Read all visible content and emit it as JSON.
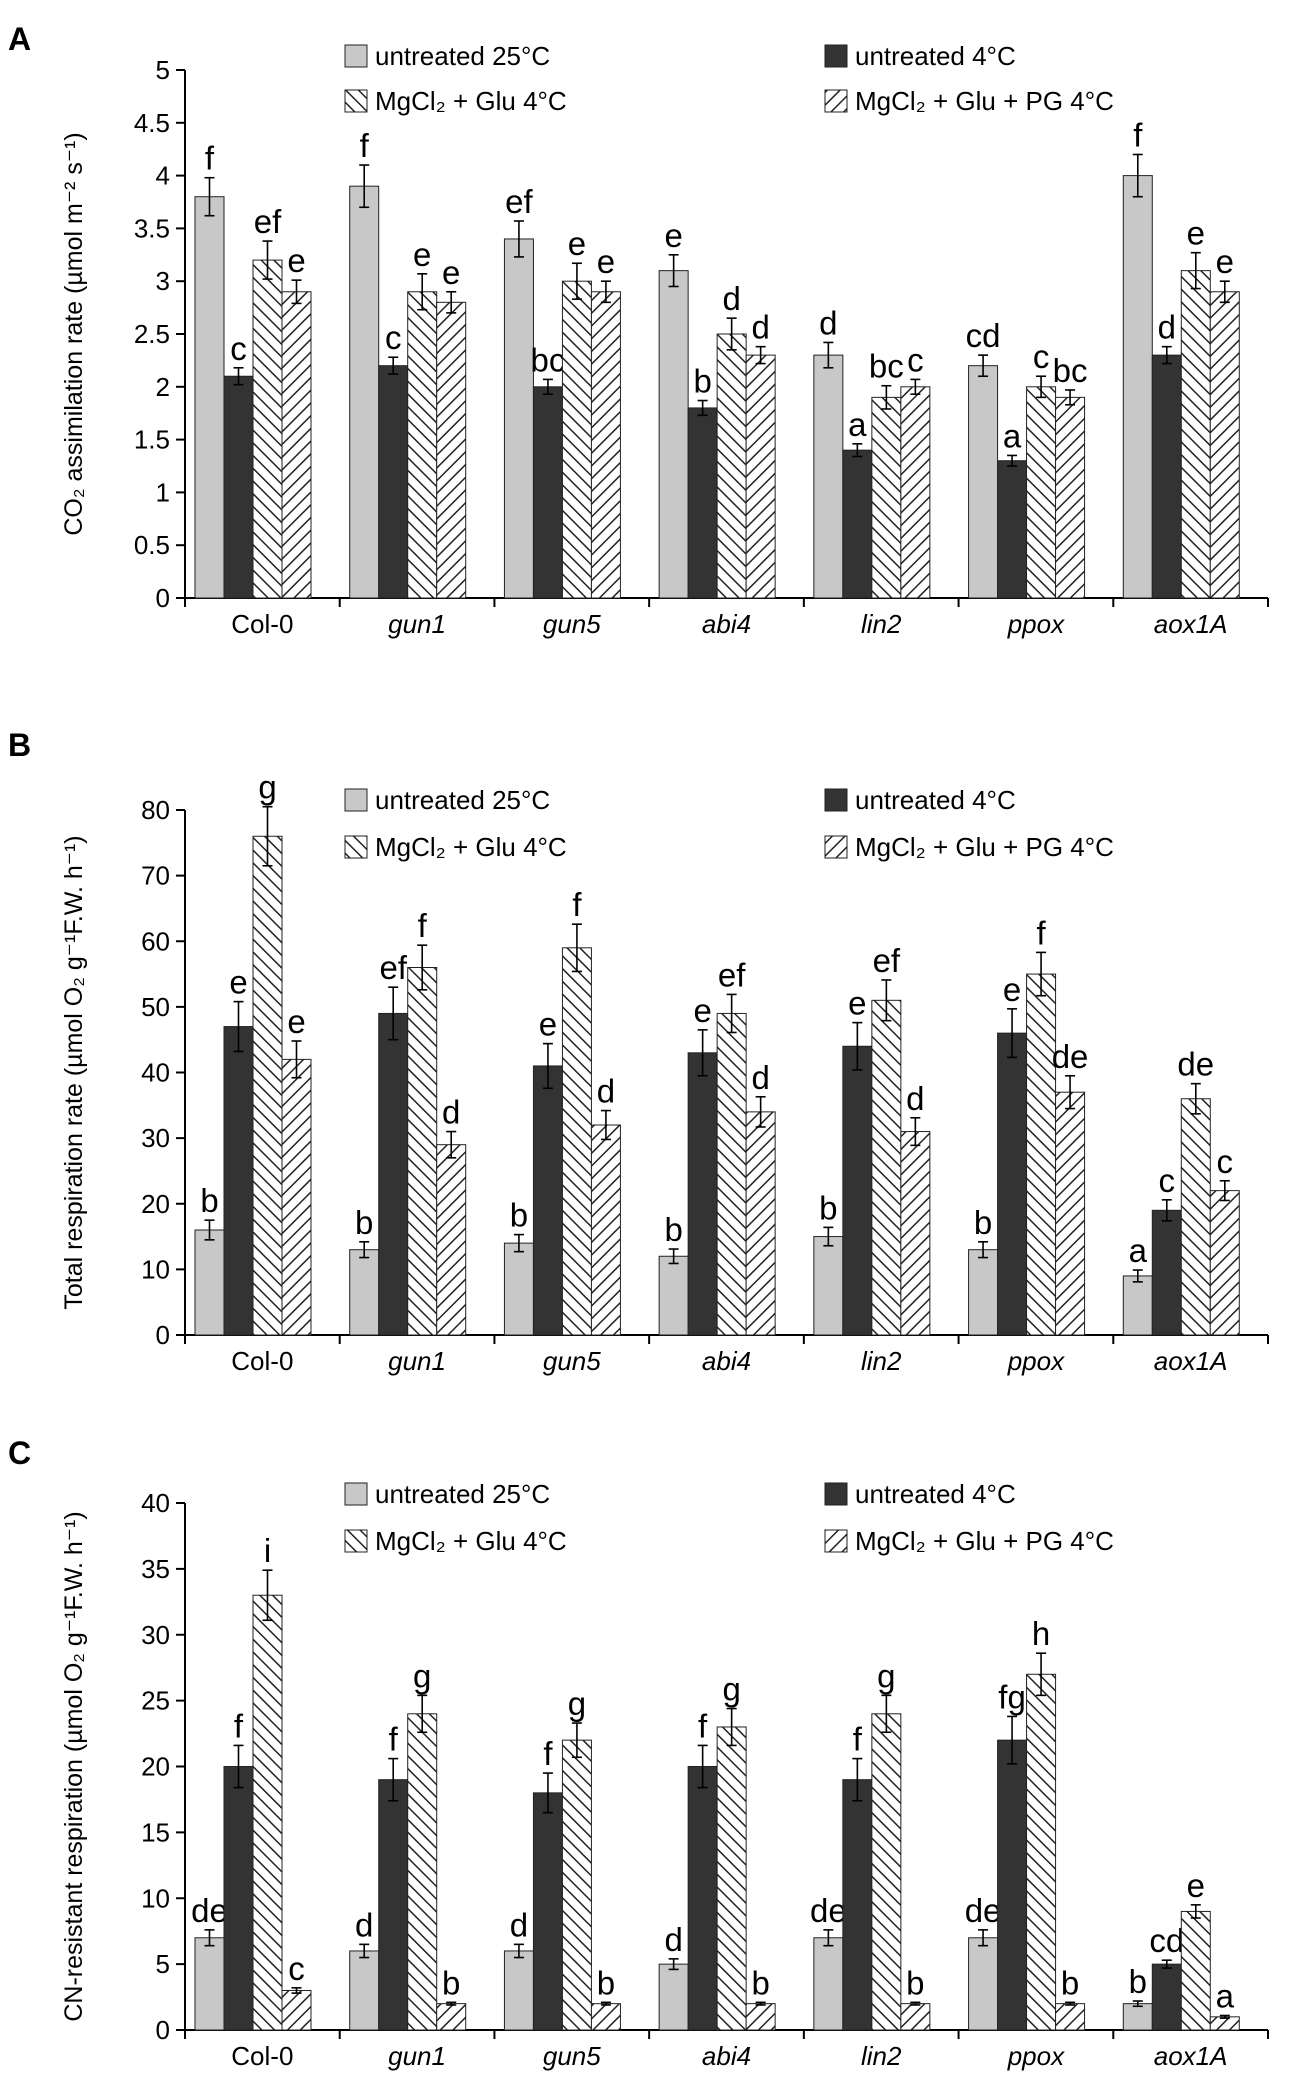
{
  "figure": {
    "legend": [
      {
        "name": "untreated 25°C",
        "color": "#c8c8c8",
        "pattern": "solid"
      },
      {
        "name": "untreated 4°C",
        "color": "#333333",
        "pattern": "solid"
      },
      {
        "name": "MgCl₂ + Glu 4°C",
        "color": "#ffffff",
        "pattern": "hatch-right"
      },
      {
        "name": "MgCl₂ + Glu + PG 4°C",
        "color": "#ffffff",
        "pattern": "hatch-left"
      }
    ]
  },
  "chart_data": [
    {
      "type": "bar",
      "panel": "A",
      "ylabel": "CO₂ assimilation rate (µmol m⁻² s⁻¹)",
      "ylim": [
        0,
        5
      ],
      "yticks": [
        0,
        0.5,
        1,
        1.5,
        2,
        2.5,
        3,
        3.5,
        4,
        4.5,
        5
      ],
      "yticklabels": [
        "0",
        "0.5",
        "1",
        "1.5",
        "2",
        "2.5",
        "3",
        "3.5",
        "4",
        "4.5",
        "5"
      ],
      "categories": [
        "Col-0",
        "gun1",
        "gun5",
        "abi4",
        "lin2",
        "ppox",
        "aox1A"
      ],
      "italic_categories": [
        false,
        true,
        true,
        true,
        true,
        true,
        true
      ],
      "series": [
        {
          "name": "untreated 25°C",
          "values": [
            3.8,
            3.9,
            3.4,
            3.1,
            2.3,
            2.2,
            4.0
          ],
          "errors": [
            0.18,
            0.2,
            0.17,
            0.15,
            0.12,
            0.1,
            0.2
          ],
          "letters": [
            "f",
            "f",
            "ef",
            "e",
            "d",
            "cd",
            "f"
          ]
        },
        {
          "name": "untreated 4°C",
          "values": [
            2.1,
            2.2,
            2.0,
            1.8,
            1.4,
            1.3,
            2.3
          ],
          "errors": [
            0.08,
            0.08,
            0.07,
            0.07,
            0.06,
            0.05,
            0.08
          ],
          "letters": [
            "c",
            "c",
            "bc",
            "b",
            "a",
            "a",
            "d"
          ]
        },
        {
          "name": "MgCl₂ + Glu 4°C",
          "values": [
            3.2,
            2.9,
            3.0,
            2.5,
            1.9,
            2.0,
            3.1
          ],
          "errors": [
            0.18,
            0.17,
            0.17,
            0.15,
            0.11,
            0.1,
            0.17
          ],
          "letters": [
            "ef",
            "e",
            "e",
            "d",
            "bc",
            "c",
            "e"
          ]
        },
        {
          "name": "MgCl₂ + Glu + PG 4°C",
          "values": [
            2.9,
            2.8,
            2.9,
            2.3,
            2.0,
            1.9,
            2.9
          ],
          "errors": [
            0.11,
            0.1,
            0.1,
            0.08,
            0.07,
            0.07,
            0.1
          ],
          "letters": [
            "e",
            "e",
            "e",
            "d",
            "c",
            "bc",
            "e"
          ]
        }
      ]
    },
    {
      "type": "bar",
      "panel": "B",
      "ylabel": "Total respiration rate (µmol O₂ g⁻¹F.W. h⁻¹)",
      "ylim": [
        0,
        80
      ],
      "yticks": [
        0,
        10,
        20,
        30,
        40,
        50,
        60,
        70,
        80
      ],
      "yticklabels": [
        "0",
        "10",
        "20",
        "30",
        "40",
        "50",
        "60",
        "70",
        "80"
      ],
      "categories": [
        "Col-0",
        "gun1",
        "gun5",
        "abi4",
        "lin2",
        "ppox",
        "aox1A"
      ],
      "italic_categories": [
        false,
        true,
        true,
        true,
        true,
        true,
        true
      ],
      "series": [
        {
          "name": "untreated 25°C",
          "values": [
            16,
            13,
            14,
            12,
            15,
            13,
            9
          ],
          "errors": [
            1.5,
            1.2,
            1.3,
            1.1,
            1.4,
            1.2,
            0.9
          ],
          "letters": [
            "b",
            "b",
            "b",
            "b",
            "b",
            "b",
            "a"
          ]
        },
        {
          "name": "untreated 4°C",
          "values": [
            47,
            49,
            41,
            43,
            44,
            46,
            19
          ],
          "errors": [
            3.8,
            4.0,
            3.4,
            3.5,
            3.6,
            3.7,
            1.6
          ],
          "letters": [
            "e",
            "ef",
            "e",
            "e",
            "e",
            "e",
            "c"
          ]
        },
        {
          "name": "MgCl₂ + Glu 4°C",
          "values": [
            76,
            56,
            59,
            49,
            51,
            55,
            36
          ],
          "errors": [
            4.5,
            3.4,
            3.6,
            2.9,
            3.1,
            3.3,
            2.3
          ],
          "letters": [
            "g",
            "f",
            "f",
            "ef",
            "ef",
            "f",
            "de"
          ]
        },
        {
          "name": "MgCl₂ + Glu + PG 4°C",
          "values": [
            42,
            29,
            32,
            34,
            31,
            37,
            22
          ],
          "errors": [
            2.8,
            2.0,
            2.2,
            2.3,
            2.1,
            2.5,
            1.5
          ],
          "letters": [
            "e",
            "d",
            "d",
            "d",
            "d",
            "de",
            "c"
          ]
        }
      ]
    },
    {
      "type": "bar",
      "panel": "C",
      "ylabel": "CN-resistant respiration (µmol O₂ g⁻¹F.W. h⁻¹)",
      "ylim": [
        0,
        40
      ],
      "yticks": [
        0,
        5,
        10,
        15,
        20,
        25,
        30,
        35,
        40
      ],
      "yticklabels": [
        "0",
        "5",
        "10",
        "15",
        "20",
        "25",
        "30",
        "35",
        "40"
      ],
      "categories": [
        "Col-0",
        "gun1",
        "gun5",
        "abi4",
        "lin2",
        "ppox",
        "aox1A"
      ],
      "italic_categories": [
        false,
        true,
        true,
        true,
        true,
        true,
        true
      ],
      "series": [
        {
          "name": "untreated 25°C",
          "values": [
            7,
            6,
            6,
            5,
            7,
            7,
            2
          ],
          "errors": [
            0.6,
            0.5,
            0.5,
            0.4,
            0.6,
            0.6,
            0.2
          ],
          "letters": [
            "de",
            "d",
            "d",
            "d",
            "de",
            "de",
            "b"
          ]
        },
        {
          "name": "untreated 4°C",
          "values": [
            20,
            19,
            18,
            20,
            19,
            22,
            5
          ],
          "errors": [
            1.6,
            1.6,
            1.5,
            1.6,
            1.6,
            1.8,
            0.3
          ],
          "letters": [
            "f",
            "f",
            "f",
            "f",
            "f",
            "fg",
            "cd"
          ]
        },
        {
          "name": "MgCl₂ + Glu 4°C",
          "values": [
            33,
            24,
            22,
            23,
            24,
            27,
            9
          ],
          "errors": [
            1.9,
            1.4,
            1.3,
            1.4,
            1.4,
            1.6,
            0.5
          ],
          "letters": [
            "i",
            "g",
            "g",
            "g",
            "g",
            "h",
            "e"
          ]
        },
        {
          "name": "MgCl₂ + Glu + PG 4°C",
          "values": [
            3,
            2,
            2,
            2,
            2,
            2,
            1
          ],
          "errors": [
            0.2,
            0.1,
            0.1,
            0.1,
            0.1,
            0.1,
            0.1
          ],
          "letters": [
            "c",
            "b",
            "b",
            "b",
            "b",
            "b",
            "a"
          ]
        }
      ]
    }
  ]
}
